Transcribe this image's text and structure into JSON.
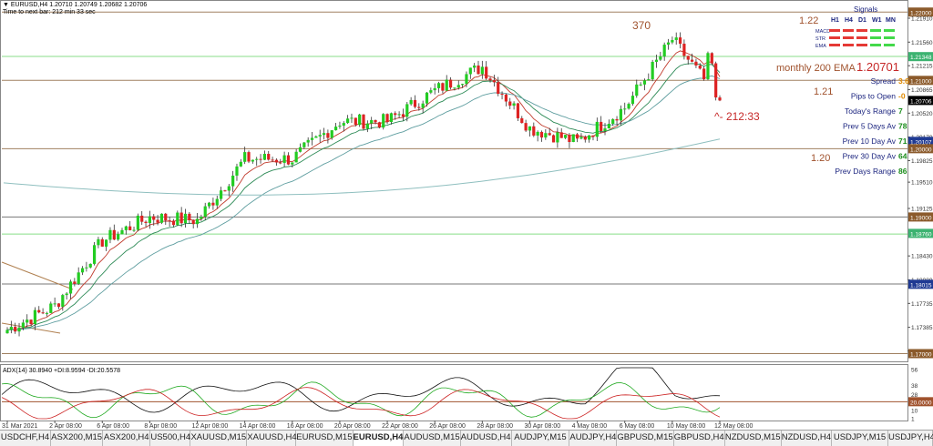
{
  "header": {
    "line1": "▼ EURUSD,H4  1.20710 1.20749 1.20682 1.20706",
    "line2": "Time to next bar: 212 min 33 sec"
  },
  "axis": {
    "price_labels": [
      "1.22000",
      "1.21910",
      "1.21560",
      "1.21348",
      "1.21215",
      "1.21000",
      "1.20865",
      "1.20706",
      "1.20520",
      "1.20170",
      "1.20107",
      "1.20000",
      "1.19825",
      "1.19510",
      "1.19125",
      "1.19000",
      "1.18760",
      "1.18430",
      "1.18080",
      "1.18015",
      "1.17735",
      "1.17385",
      "1.17040",
      "1.17000"
    ],
    "adx_labels": [
      "56",
      "38",
      "28",
      "20.0000",
      "10",
      "1"
    ],
    "time_labels": [
      "31 Mar 2021",
      "2 Apr 08:00",
      "6 Apr 08:00",
      "8 Apr 08:00",
      "12 Apr 08:00",
      "14 Apr 08:00",
      "16 Apr 08:00",
      "20 Apr 08:00",
      "22 Apr 08:00",
      "26 Apr 08:00",
      "28 Apr 08:00",
      "30 Apr 08:00",
      "4 May 08:00",
      "6 May 08:00",
      "10 May 08:00",
      "12 May 08:00"
    ]
  },
  "annotations": {
    "pips_370": "370",
    "lvl_122": "1.22",
    "lvl_121": "1.21",
    "lvl_120": "1.20",
    "monthly_label": "monthly 200 EMA",
    "monthly_value": "1.20701",
    "countdown": "^- 212:33"
  },
  "signals": {
    "title": "Signals",
    "timeframes": [
      "H1",
      "H4",
      "D1",
      "W1",
      "MN"
    ],
    "rows": [
      {
        "label": "MACD",
        "colors": [
          "#e53935",
          "#e53935",
          "#e53935",
          "#43d94a",
          "#43d94a"
        ]
      },
      {
        "label": "STR",
        "colors": [
          "#e53935",
          "#e53935",
          "#e53935",
          "#43d94a",
          "#43d94a"
        ]
      },
      {
        "label": "EMA",
        "colors": [
          "#e53935",
          "#e53935",
          "#e53935",
          "#43d94a",
          "#43d94a"
        ]
      }
    ]
  },
  "info": [
    {
      "label": "Spread",
      "value": "3.6",
      "value_color": "#e08a00"
    },
    {
      "label": "Pips to Open",
      "value": "-0",
      "value_color": "#e08a00"
    },
    {
      "label": "Today's Range",
      "value": "7",
      "value_color": "#1a8c1a"
    },
    {
      "label": "Prev 5 Days Av",
      "value": "78",
      "value_color": "#1a8c1a"
    },
    {
      "label": "Prev 10 Day Av",
      "value": "71",
      "value_color": "#1a8c1a"
    },
    {
      "label": "Prev 30 Day Av",
      "value": "64",
      "value_color": "#1a8c1a"
    },
    {
      "label": "Prev Days Range",
      "value": "86",
      "value_color": "#1a8c1a"
    }
  ],
  "adx": {
    "label": "ADX(14) 30.8940 +DI:8.9594 -DI:20.5578"
  },
  "tabs": [
    "USDCHF,H4",
    "ASX200,M15",
    "ASX200,H4",
    "US500,H4",
    "XAUUSD,M15",
    "XAUUSD,H4",
    "EURUSD,M15",
    "EURUSD,H4",
    "AUDUSD,M15",
    "AUDUSD,H4",
    "AUDJPY,M15",
    "AUDJPY,H4",
    "GBPUSD,M15",
    "GBPUSD,H4",
    "NZDUSD,M15",
    "NZDUSD,H4",
    "USDJPY,M15",
    "USDJPY,H4"
  ],
  "active_tab": "EURUSD,H4",
  "colors": {
    "bull": "#22cc22",
    "bear": "#dd2222",
    "ema_fast": "#c0392b",
    "ema_mid": "#2e8b57",
    "ema_slow": "#5f9ea0",
    "ema_200": "#8fbfbf",
    "level": "#b08050"
  },
  "chart_data": {
    "type": "candlestick",
    "series_close_path": [
      [
        "31 Mar 2021",
        1.1735
      ],
      [
        "2 Apr 08:00",
        1.177
      ],
      [
        "6 Apr 08:00",
        1.1865
      ],
      [
        "8 Apr 08:00",
        1.19
      ],
      [
        "12 Apr 08:00",
        1.1895
      ],
      [
        "14 Apr 08:00",
        1.1985
      ],
      [
        "16 Apr 08:00",
        1.1985
      ],
      [
        "20 Apr 08:00",
        1.204
      ],
      [
        "22 Apr 08:00",
        1.204
      ],
      [
        "26 Apr 08:00",
        1.2085
      ],
      [
        "28 Apr 08:00",
        1.212
      ],
      [
        "30 Apr 08:00",
        1.203
      ],
      [
        "4 May 08:00",
        1.201
      ],
      [
        "6 May 08:00",
        1.206
      ],
      [
        "10 May 08:00",
        1.216
      ],
      [
        "12 May 08:00",
        1.2071
      ]
    ],
    "ylim": [
      1.169,
      1.2215
    ],
    "horizontal_levels": [
      1.22,
      1.2135,
      1.21,
      1.2,
      1.19,
      1.1875,
      1.1802,
      1.17
    ],
    "adx_series": {
      "adx_last": 30.894,
      "plus_di_last": 8.9594,
      "minus_di_last": 20.5578,
      "adx_ylim": [
        0,
        60
      ]
    }
  }
}
